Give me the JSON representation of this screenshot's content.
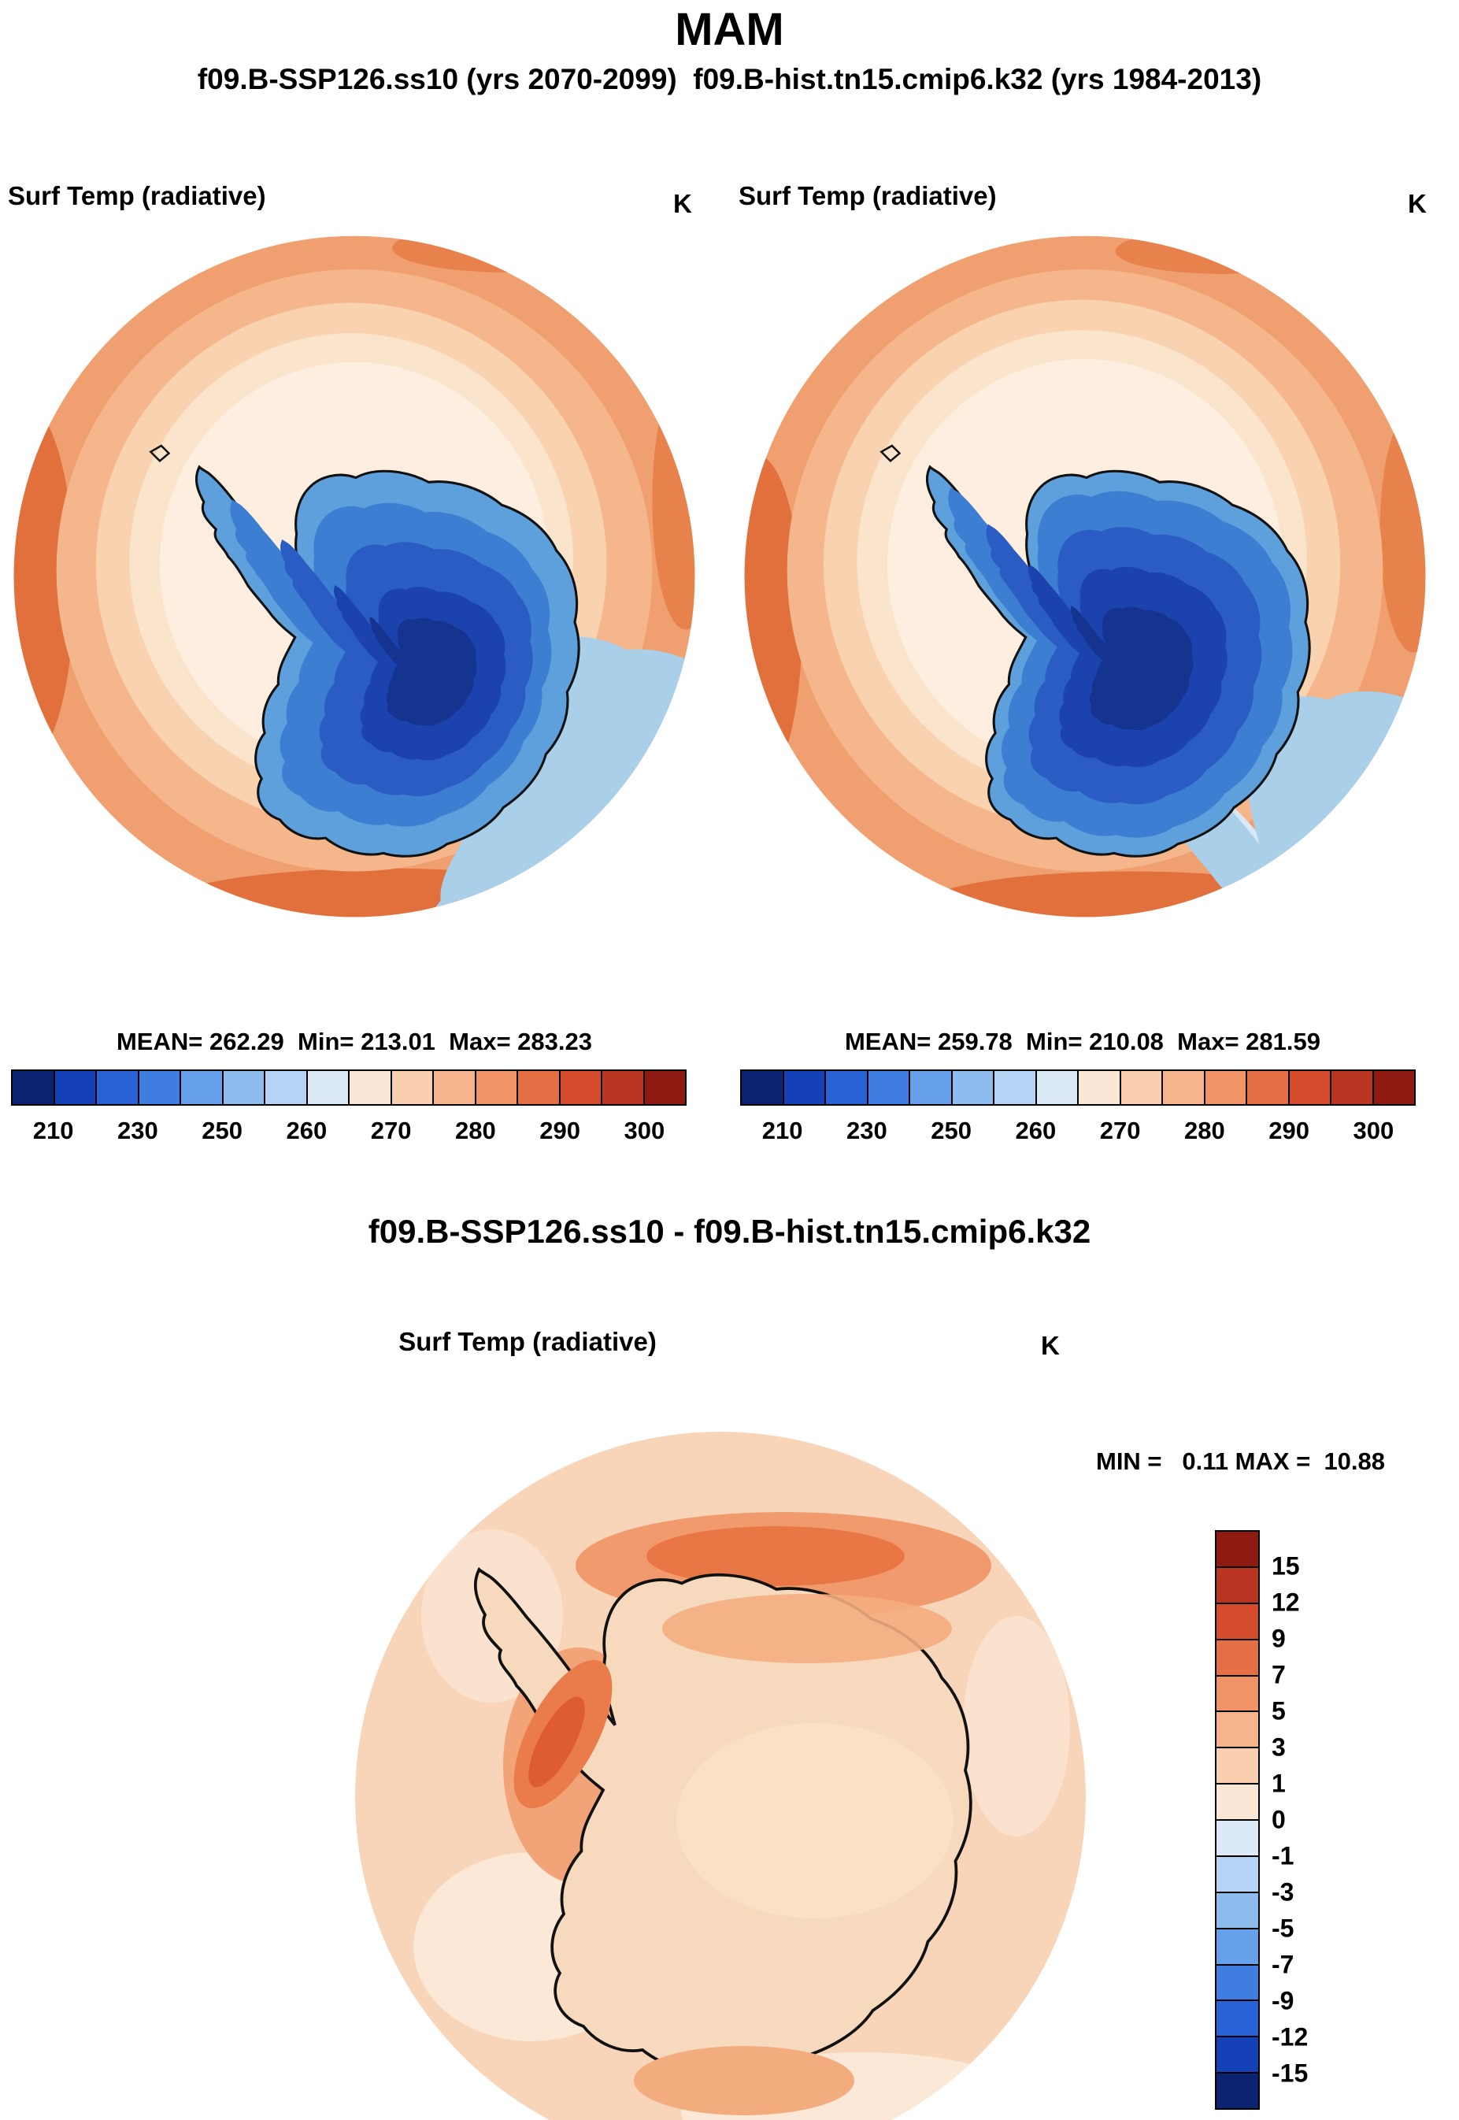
{
  "title": "MAM",
  "subtitle": "f09.B-SSP126.ss10 (yrs 2070-2099)  f09.B-hist.tn15.cmip6.k32 (yrs 1984-2013)",
  "left_panel": {
    "label": "Surf Temp (radiative)",
    "units": "K",
    "stats": "MEAN= 262.29  Min= 213.01  Max= 283.23"
  },
  "right_panel": {
    "label": "Surf Temp (radiative)",
    "units": "K",
    "stats": "MEAN= 259.78  Min= 210.08  Max= 281.59"
  },
  "diff_panel": {
    "title": "f09.B-SSP126.ss10 - f09.B-hist.tn15.cmip6.k32",
    "label": "Surf Temp (radiative)",
    "units": "K",
    "stats": "MIN =   0.11 MAX =  10.88"
  },
  "colorbar_top": {
    "colors": [
      "#0A2472",
      "#1541B8",
      "#2862D6",
      "#3F7EE0",
      "#66A0EA",
      "#8FBCEF",
      "#B5D3F4",
      "#DCEAF8",
      "#FBE7D5",
      "#F9CFAF",
      "#F5B48B",
      "#F09468",
      "#E56F44",
      "#D44C2C",
      "#B93421",
      "#8F1A12"
    ],
    "ticks": [
      "210",
      "230",
      "250",
      "260",
      "270",
      "280",
      "290",
      "300"
    ]
  },
  "colorbar_diff": {
    "colors": [
      "#8F1A12",
      "#B93421",
      "#D44C2C",
      "#E56F44",
      "#F09468",
      "#F5B48B",
      "#F9CFAF",
      "#FBE7D5",
      "#DCEAF8",
      "#B5D3F4",
      "#8FBCEF",
      "#66A0EA",
      "#3F7EE0",
      "#2862D6",
      "#1541B8",
      "#0A2472"
    ],
    "ticks": [
      "15",
      "12",
      "9",
      "7",
      "5",
      "3",
      "1",
      "0",
      "-1",
      "-3",
      "-5",
      "-7",
      "-9",
      "-12",
      "-15"
    ]
  },
  "chart_data": [
    {
      "type": "heatmap",
      "projection": "south-polar-map",
      "title": "MAM",
      "panel": "f09.B-SSP126.ss10 (yrs 2070-2099)",
      "variable": "Surf Temp (radiative)",
      "units": "K",
      "mean": 262.29,
      "min": 213.01,
      "max": 283.23,
      "colorbar_ticks": [
        210,
        230,
        250,
        260,
        270,
        280,
        290,
        300
      ],
      "legend_position": "bottom"
    },
    {
      "type": "heatmap",
      "projection": "south-polar-map",
      "title": "MAM",
      "panel": "f09.B-hist.tn15.cmip6.k32 (yrs 1984-2013)",
      "variable": "Surf Temp (radiative)",
      "units": "K",
      "mean": 259.78,
      "min": 210.08,
      "max": 281.59,
      "colorbar_ticks": [
        210,
        230,
        250,
        260,
        270,
        280,
        290,
        300
      ],
      "legend_position": "bottom"
    },
    {
      "type": "heatmap",
      "projection": "south-polar-map",
      "title": "f09.B-SSP126.ss10 - f09.B-hist.tn15.cmip6.k32",
      "variable": "Surf Temp (radiative)",
      "units": "K",
      "min": 0.11,
      "max": 10.88,
      "colorbar_ticks": [
        15,
        12,
        9,
        7,
        5,
        3,
        1,
        0,
        -1,
        -3,
        -5,
        -7,
        -9,
        -12,
        -15
      ],
      "legend_position": "right"
    }
  ]
}
